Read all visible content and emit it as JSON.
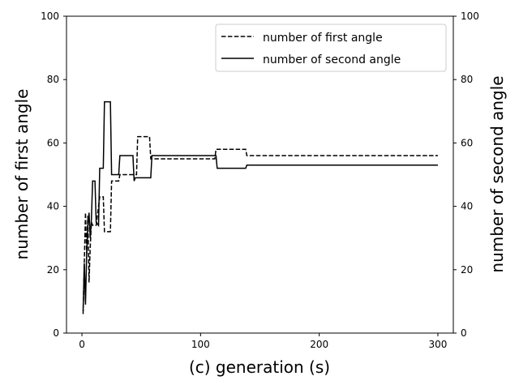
{
  "chart_data": {
    "type": "line",
    "xlabel": "(c) generation (s)",
    "ylabel_left": "number of first angle",
    "ylabel_right": "number of second angle",
    "xlim": [
      -13,
      313
    ],
    "xticks": [
      0,
      100,
      200,
      300
    ],
    "ylim": [
      0,
      100
    ],
    "yticks": [
      0,
      20,
      40,
      60,
      80,
      100
    ],
    "legend_location": "upper right",
    "grid": false,
    "series": [
      {
        "name": "number of first angle",
        "axis": "left",
        "style": "dashed",
        "color": "#000000",
        "points": [
          [
            1,
            6
          ],
          [
            3,
            38
          ],
          [
            4,
            25
          ],
          [
            5,
            37
          ],
          [
            6,
            16
          ],
          [
            7,
            27
          ],
          [
            8,
            35
          ],
          [
            9,
            34
          ],
          [
            12,
            34
          ],
          [
            15,
            43
          ],
          [
            18,
            43
          ],
          [
            19,
            32
          ],
          [
            24,
            32
          ],
          [
            25,
            48
          ],
          [
            31,
            48
          ],
          [
            32,
            50
          ],
          [
            46,
            50
          ],
          [
            47,
            62
          ],
          [
            57,
            62
          ],
          [
            58,
            55
          ],
          [
            112,
            55
          ],
          [
            113,
            58
          ],
          [
            138,
            58
          ],
          [
            139,
            56
          ],
          [
            300,
            56
          ]
        ]
      },
      {
        "name": "number of second angle",
        "axis": "right",
        "style": "solid",
        "color": "#000000",
        "points": [
          [
            1,
            7
          ],
          [
            2,
            22
          ],
          [
            3,
            9
          ],
          [
            4,
            25
          ],
          [
            5,
            34
          ],
          [
            6,
            38
          ],
          [
            7,
            30
          ],
          [
            8,
            36
          ],
          [
            9,
            48
          ],
          [
            11,
            48
          ],
          [
            12,
            35
          ],
          [
            14,
            34
          ],
          [
            15,
            52
          ],
          [
            18,
            52
          ],
          [
            19,
            73
          ],
          [
            24,
            73
          ],
          [
            25,
            50
          ],
          [
            31,
            50
          ],
          [
            32,
            56
          ],
          [
            43,
            56
          ],
          [
            44,
            48
          ],
          [
            45,
            49
          ],
          [
            58,
            49
          ],
          [
            59,
            56
          ],
          [
            113,
            56
          ],
          [
            114,
            52
          ],
          [
            138,
            52
          ],
          [
            139,
            53
          ],
          [
            300,
            53
          ]
        ]
      }
    ]
  }
}
